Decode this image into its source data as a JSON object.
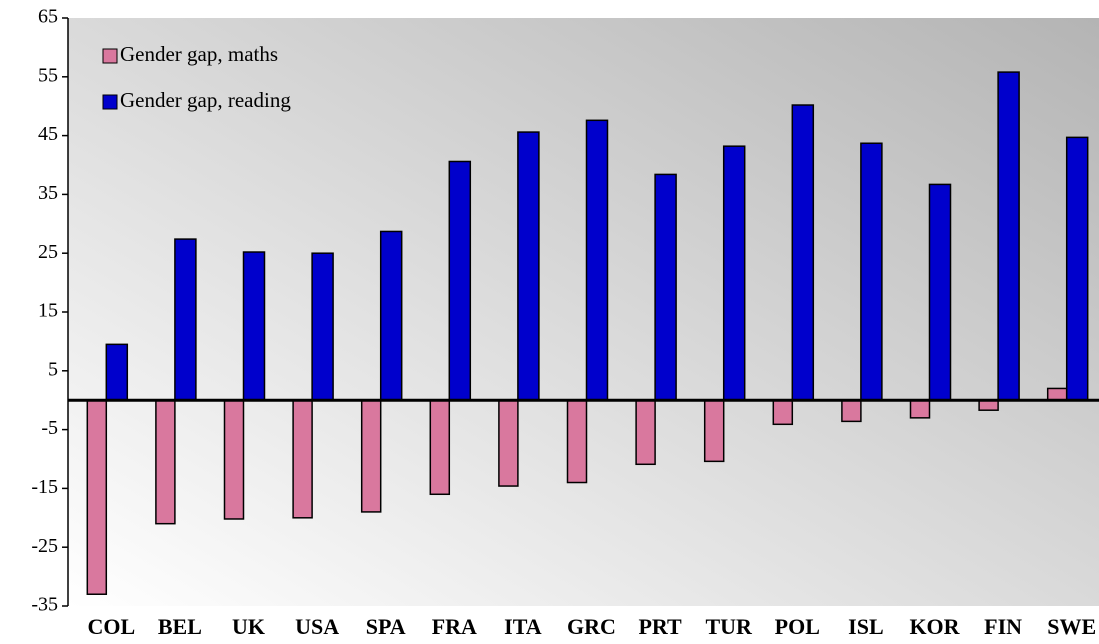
{
  "chart_data": {
    "type": "bar",
    "categories": [
      "COL",
      "BEL",
      "UK",
      "USA",
      "SPA",
      "FRA",
      "ITA",
      "GRC",
      "PRT",
      "TUR",
      "POL",
      "ISL",
      "KOR",
      "FIN",
      "SWE"
    ],
    "series": [
      {
        "name": "Gender gap, maths",
        "color": "#d9789e",
        "values": [
          -33,
          -21,
          -20.2,
          -20,
          -19,
          -16,
          -14.6,
          -14,
          -10.9,
          -10.4,
          -4.1,
          -3.6,
          -3,
          -1.7,
          2
        ]
      },
      {
        "name": "Gender gap, reading",
        "color": "#0000cc",
        "values": [
          9.5,
          27.4,
          25.2,
          25,
          28.7,
          40.6,
          45.6,
          47.6,
          38.4,
          43.2,
          50.2,
          43.7,
          36.7,
          55.8,
          44.7
        ]
      }
    ],
    "ylim": [
      -35,
      65
    ],
    "yticks": [
      -35,
      -25,
      -15,
      -5,
      5,
      15,
      25,
      35,
      45,
      55,
      65
    ],
    "legend": "top-left"
  }
}
